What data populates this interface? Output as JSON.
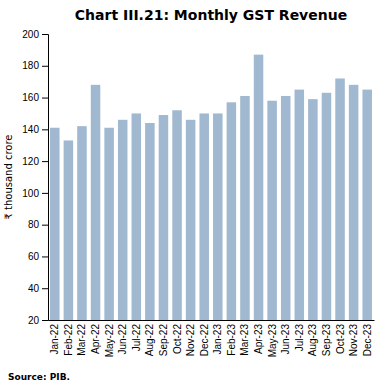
{
  "chart_data": {
    "type": "bar",
    "title": "Chart III.21: Monthly GST Revenue",
    "categories": [
      "Jan-22",
      "Feb-22",
      "Mar-22",
      "Apr-22",
      "May-22",
      "Jun-22",
      "Jul-22",
      "Aug-22",
      "Sep-22",
      "Oct-22",
      "Nov-22",
      "Dec-22",
      "Jan-23",
      "Feb-23",
      "Mar-23",
      "Apr-23",
      "May-23",
      "Jun-23",
      "Jul-23",
      "Aug-23",
      "Sep-23",
      "Oct-23",
      "Nov-23",
      "Dec-23"
    ],
    "values": [
      141,
      133,
      142,
      168,
      141,
      146,
      150,
      144,
      149,
      152,
      146,
      150,
      150,
      157,
      161,
      187,
      158,
      161,
      165,
      159,
      163,
      172,
      168,
      165
    ],
    "color": "#a0b8d0",
    "ylabel": "₹ thousand crore",
    "ylim": [
      20,
      200
    ],
    "yticks": [
      20,
      40,
      60,
      80,
      100,
      120,
      140,
      160,
      180,
      200
    ],
    "annotations": [
      "Source: PIB."
    ],
    "grid": false
  }
}
